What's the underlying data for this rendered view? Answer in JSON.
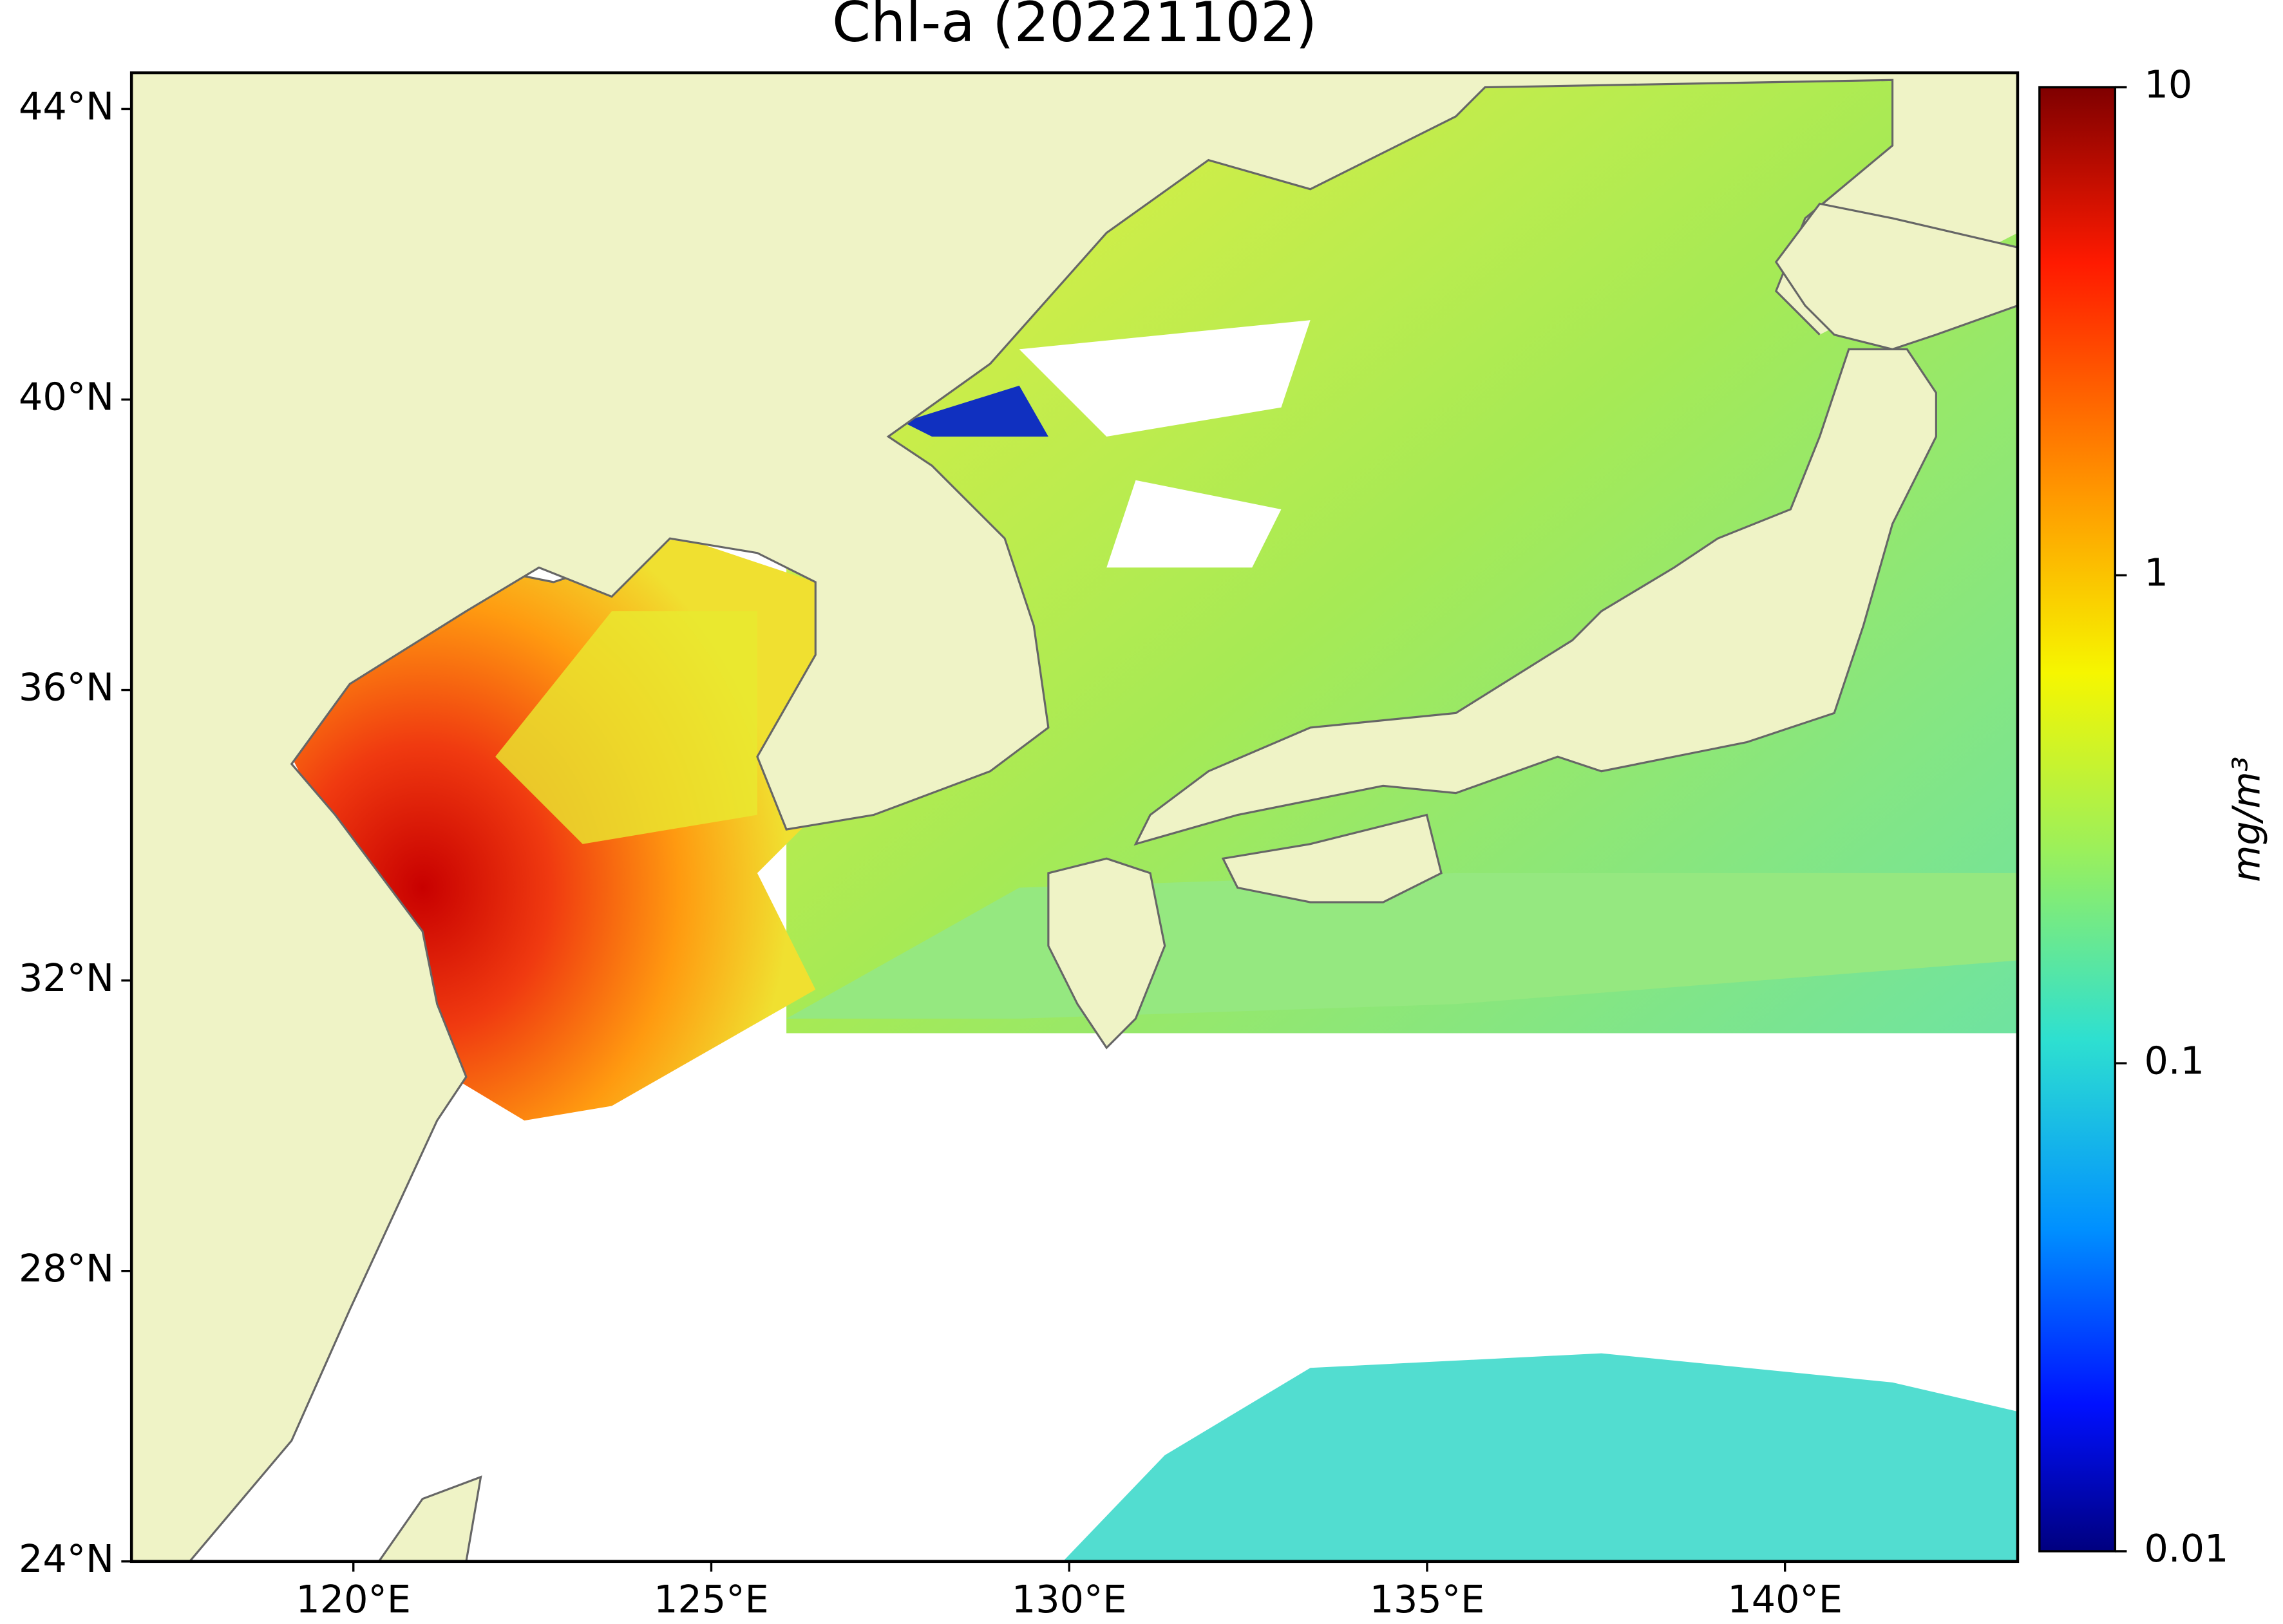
{
  "chart_data": {
    "type": "map",
    "title": "Chl-a (20221102)",
    "xlim": [
      116.9,
      143.25
    ],
    "ylim": [
      24,
      44.5
    ],
    "xticks": [
      {
        "value": 120,
        "label": "120°E"
      },
      {
        "value": 125,
        "label": "125°E"
      },
      {
        "value": 130,
        "label": "130°E"
      },
      {
        "value": 135,
        "label": "135°E"
      },
      {
        "value": 140,
        "label": "140°E"
      }
    ],
    "yticks": [
      {
        "value": 24,
        "label": "24°N"
      },
      {
        "value": 28,
        "label": "28°N"
      },
      {
        "value": 32,
        "label": "32°N"
      },
      {
        "value": 36,
        "label": "36°N"
      },
      {
        "value": 40,
        "label": "40°N"
      },
      {
        "value": 44,
        "label": "44°N"
      }
    ],
    "colorbar": {
      "label": "mg/m³",
      "scale": "log",
      "lim": [
        0.01,
        10
      ],
      "ticks": [
        0.01,
        0.1,
        1,
        10
      ]
    }
  }
}
